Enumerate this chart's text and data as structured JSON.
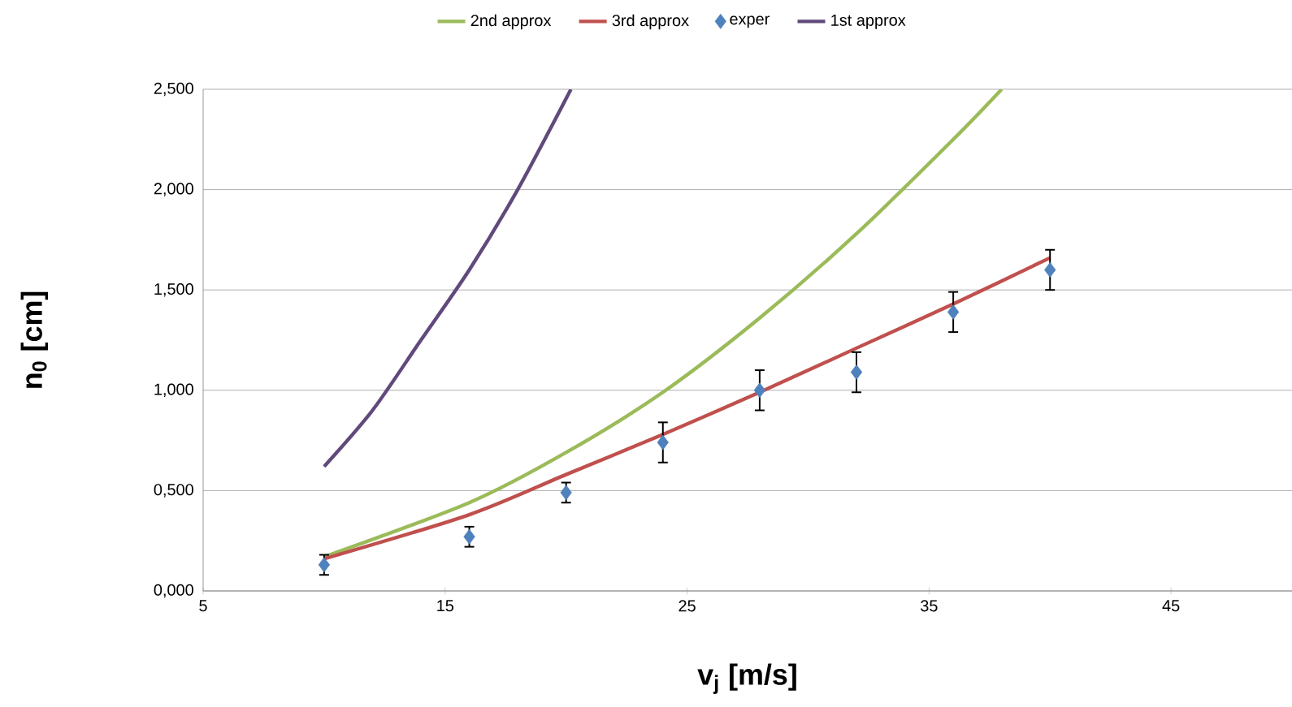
{
  "chart_data": {
    "type": "line",
    "xlabel": "v$_{j}$ [m/s]",
    "ylabel": "n$_{0}$ [cm]",
    "xlim": [
      5,
      50
    ],
    "xticks": [
      5,
      15,
      25,
      35,
      45
    ],
    "ylim": [
      0,
      2.5
    ],
    "yticks": [
      {
        "value": 0,
        "label": "0,000"
      },
      {
        "value": 0.5,
        "label": "0,500"
      },
      {
        "value": 1,
        "label": "1,000"
      },
      {
        "value": 1.5,
        "label": "1,500"
      },
      {
        "value": 2,
        "label": "2,000"
      },
      {
        "value": 2.5,
        "label": "2,500"
      }
    ],
    "grid": "y",
    "legend": "top",
    "series": [
      {
        "name": "2nd approx",
        "color": "#9bbb59",
        "x": [
          10,
          16,
          20,
          24,
          28,
          32,
          36,
          38
        ],
        "values": [
          0.17,
          0.44,
          0.69,
          0.99,
          1.36,
          1.78,
          2.25,
          2.5
        ]
      },
      {
        "name": "3rd approx",
        "color": "#c0504d",
        "x": [
          10,
          16,
          20,
          24,
          28,
          32,
          36,
          40
        ],
        "values": [
          0.16,
          0.38,
          0.58,
          0.78,
          0.99,
          1.21,
          1.43,
          1.66
        ]
      },
      {
        "name": "exper",
        "type": "scatter",
        "marker": "diamond",
        "color": "#4f81bd",
        "x": [
          10,
          16,
          20,
          24,
          28,
          32,
          36,
          40
        ],
        "values": [
          0.13,
          0.27,
          0.49,
          0.74,
          1.0,
          1.09,
          1.39,
          1.6
        ],
        "errors": [
          0.05,
          0.05,
          0.05,
          0.1,
          0.1,
          0.1,
          0.1,
          0.1
        ]
      },
      {
        "name": "1st approx",
        "color": "#604a7b",
        "x": [
          10,
          12,
          14,
          16,
          18,
          20.2
        ],
        "values": [
          0.62,
          0.9,
          1.25,
          1.6,
          2.0,
          2.5
        ]
      }
    ]
  }
}
